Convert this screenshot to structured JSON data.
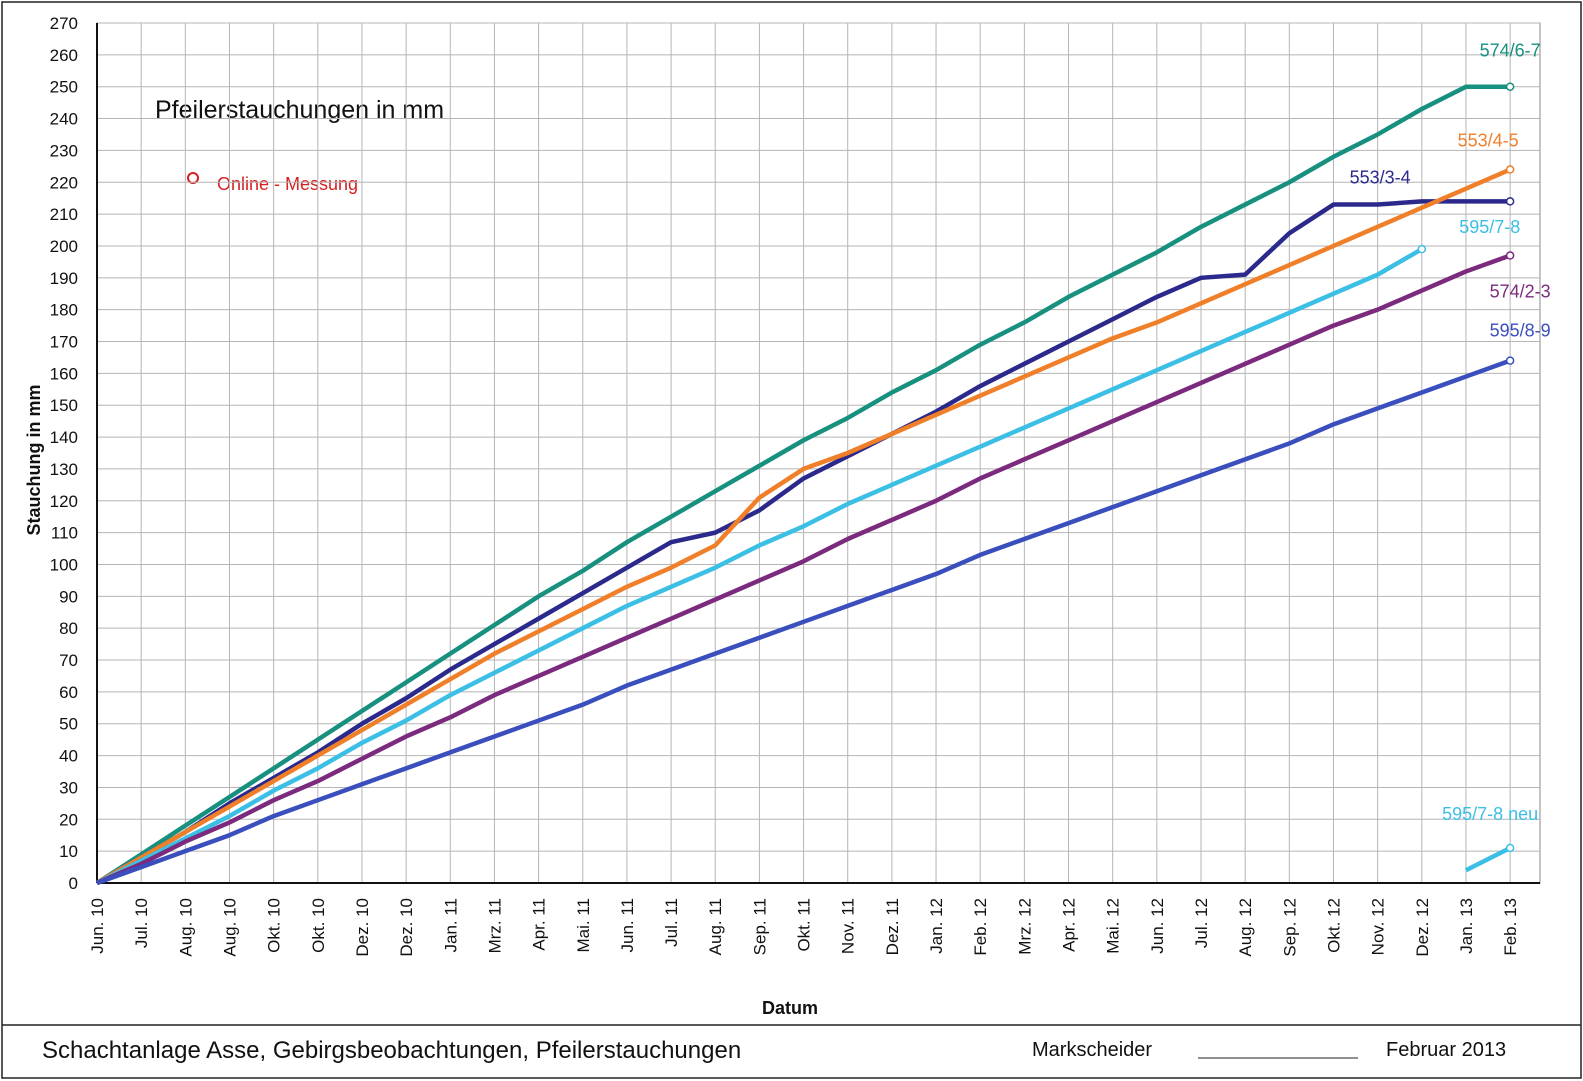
{
  "chart_data": {
    "type": "line",
    "title": "Pfeilerstauchungen in mm",
    "annotation": "Online - Messung",
    "x_label": "Datum",
    "y_label": "Stauchung in mm",
    "categories": [
      "Jun. 10",
      "Jul. 10",
      "Aug. 10",
      "Aug. 10",
      "Okt. 10",
      "Okt. 10",
      "Dez. 10",
      "Dez. 10",
      "Jan. 11",
      "Mrz. 11",
      "Apr. 11",
      "Mai. 11",
      "Jun. 11",
      "Jul. 11",
      "Aug. 11",
      "Sep. 11",
      "Okt. 11",
      "Nov. 11",
      "Dez. 11",
      "Jan. 12",
      "Feb. 12",
      "Mrz. 12",
      "Apr. 12",
      "Mai. 12",
      "Jun. 12",
      "Jul. 12",
      "Aug. 12",
      "Sep. 12",
      "Okt. 12",
      "Nov. 12",
      "Dez. 12",
      "Jan. 13",
      "Feb. 13"
    ],
    "ylim": [
      0,
      270
    ],
    "yticks": [
      0,
      10,
      20,
      30,
      40,
      50,
      60,
      70,
      80,
      90,
      100,
      110,
      120,
      130,
      140,
      150,
      160,
      170,
      180,
      190,
      200,
      210,
      220,
      230,
      240,
      250,
      260,
      270
    ],
    "grid": true,
    "series": [
      {
        "name": "574/6-7",
        "color": "#17907f",
        "values": [
          0,
          9,
          18,
          27,
          36,
          45,
          54,
          63,
          72,
          81,
          90,
          98,
          107,
          115,
          123,
          131,
          139,
          146,
          154,
          161,
          169,
          176,
          184,
          191,
          198,
          206,
          213,
          220,
          228,
          235,
          243,
          250,
          250
        ]
      },
      {
        "name": "553/3-4",
        "color": "#2b2a8c",
        "values": [
          0,
          8,
          16,
          25,
          33,
          41,
          50,
          58,
          67,
          75,
          83,
          91,
          99,
          107,
          110,
          117,
          127,
          134,
          141,
          148,
          156,
          163,
          170,
          177,
          184,
          190,
          191,
          204,
          213,
          213,
          214,
          214,
          214
        ]
      },
      {
        "name": "553/4-5",
        "color": "#f07f2a",
        "values": [
          0,
          8,
          16,
          24,
          32,
          40,
          48,
          56,
          64,
          72,
          79,
          86,
          93,
          99,
          106,
          121,
          130,
          135,
          141,
          147,
          153,
          159,
          165,
          171,
          176,
          182,
          188,
          194,
          200,
          206,
          212,
          218,
          224
        ]
      },
      {
        "name": "595/7-8",
        "color": "#3bbfe5",
        "values": [
          0,
          7,
          14,
          21,
          29,
          36,
          44,
          51,
          59,
          66,
          73,
          80,
          87,
          93,
          99,
          106,
          112,
          119,
          125,
          131,
          137,
          143,
          149,
          155,
          161,
          167,
          173,
          179,
          185,
          191,
          199,
          null,
          null
        ]
      },
      {
        "name": "574/2-3",
        "color": "#7b2a7e",
        "values": [
          0,
          6,
          13,
          19,
          26,
          32,
          39,
          46,
          52,
          59,
          65,
          71,
          77,
          83,
          89,
          95,
          101,
          108,
          114,
          120,
          127,
          133,
          139,
          145,
          151,
          157,
          163,
          169,
          175,
          180,
          186,
          192,
          197
        ]
      },
      {
        "name": "595/8-9",
        "color": "#3a4fbd",
        "values": [
          0,
          5,
          10,
          15,
          21,
          26,
          31,
          36,
          41,
          46,
          51,
          56,
          62,
          67,
          72,
          77,
          82,
          87,
          92,
          97,
          103,
          108,
          113,
          118,
          123,
          128,
          133,
          138,
          144,
          149,
          154,
          159,
          164
        ]
      },
      {
        "name": "595/7-8 neu",
        "color": "#3bbfe5",
        "values": [
          null,
          null,
          null,
          null,
          null,
          null,
          null,
          null,
          null,
          null,
          null,
          null,
          null,
          null,
          null,
          null,
          null,
          null,
          null,
          null,
          null,
          null,
          null,
          null,
          null,
          null,
          null,
          null,
          null,
          null,
          null,
          4,
          11
        ]
      }
    ]
  },
  "footer": {
    "text": "Schachtanlage Asse, Gebirgsbeobachtungen, Pfeilerstauchungen",
    "signature_label": "Markscheider",
    "date": "Februar 2013"
  }
}
